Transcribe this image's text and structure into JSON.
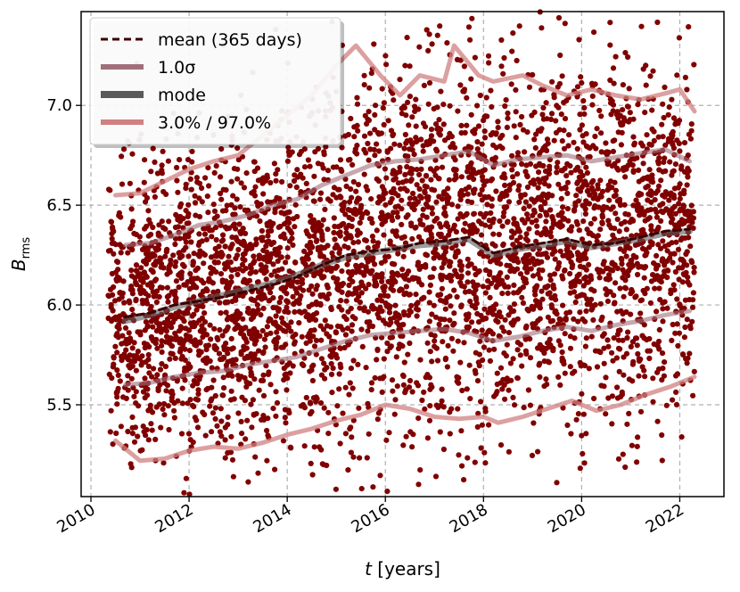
{
  "chart_data": {
    "type": "scatter",
    "xlabel": {
      "var": "t",
      "unit": " [years]"
    },
    "ylabel": {
      "var": "B",
      "sub": "rms"
    },
    "xlim": [
      2009.8,
      2022.9
    ],
    "ylim": [
      5.04,
      7.47
    ],
    "xticks": [
      2010,
      2012,
      2014,
      2016,
      2018,
      2020,
      2022
    ],
    "yticks": [
      5.5,
      6.0,
      6.5,
      7.0
    ],
    "xtick_labels": [
      "2010",
      "2012",
      "2014",
      "2016",
      "2018",
      "2020",
      "2022"
    ],
    "ytick_labels": [
      "5.5",
      "6.0",
      "6.5",
      "7.0"
    ],
    "grid": true,
    "legend_position": "top-left",
    "legend": [
      {
        "label": "mean (365 days)",
        "style": "dashed",
        "color": "#5a0000"
      },
      {
        "label": "1.0σ",
        "style": "thick",
        "color": "#a0707a"
      },
      {
        "label": "mode",
        "style": "thick-dark",
        "color": "#5a5a5a"
      },
      {
        "label": "3.0% / 97.0%",
        "style": "thick-light",
        "color": "#d08080"
      }
    ],
    "scatter": {
      "color": "#800000",
      "description_points": 4300,
      "x_range": [
        2010.35,
        2022.3
      ],
      "envelope": "points spread between the 3% and 97% curves, denser near the mean"
    },
    "series": [
      {
        "name": "mean (365 days)",
        "color": "#5a0000",
        "x": [
          2010.7,
          2011.2,
          2011.7,
          2012.2,
          2012.7,
          2013.2,
          2013.7,
          2014.2,
          2014.7,
          2015.2,
          2015.7,
          2016.2,
          2016.7,
          2017.2,
          2017.7,
          2018.2,
          2018.7,
          2019.2,
          2019.7,
          2020.2,
          2020.7,
          2021.2,
          2021.7,
          2022.2
        ],
        "y": [
          5.94,
          5.96,
          6.0,
          6.02,
          6.04,
          6.07,
          6.1,
          6.14,
          6.2,
          6.25,
          6.27,
          6.28,
          6.31,
          6.32,
          6.34,
          6.26,
          6.29,
          6.31,
          6.33,
          6.3,
          6.31,
          6.34,
          6.37,
          6.38
        ]
      },
      {
        "name": "mode",
        "color": "#5a5a5a",
        "x": [
          2010.7,
          2011.2,
          2011.7,
          2012.2,
          2012.7,
          2013.2,
          2013.7,
          2014.2,
          2014.7,
          2015.2,
          2015.7,
          2016.2,
          2016.7,
          2017.2,
          2017.7,
          2018.2,
          2018.7,
          2019.2,
          2019.7,
          2020.2,
          2020.7,
          2021.2,
          2021.7,
          2022.2
        ],
        "y": [
          5.92,
          5.95,
          5.99,
          6.02,
          6.05,
          6.08,
          6.11,
          6.15,
          6.2,
          6.24,
          6.26,
          6.28,
          6.3,
          6.31,
          6.33,
          6.25,
          6.28,
          6.3,
          6.32,
          6.29,
          6.31,
          6.33,
          6.36,
          6.37
        ]
      },
      {
        "name": "1.0σ upper",
        "color": "#a0707a",
        "x": [
          2010.7,
          2011.2,
          2011.7,
          2012.2,
          2012.7,
          2013.2,
          2013.7,
          2014.2,
          2014.7,
          2015.2,
          2015.7,
          2016.2,
          2016.7,
          2017.2,
          2017.7,
          2018.2,
          2018.7,
          2019.2,
          2019.7,
          2020.2,
          2020.7,
          2021.2,
          2021.7,
          2022.2
        ],
        "y": [
          6.3,
          6.31,
          6.35,
          6.4,
          6.42,
          6.45,
          6.5,
          6.53,
          6.6,
          6.65,
          6.7,
          6.72,
          6.73,
          6.75,
          6.77,
          6.7,
          6.73,
          6.74,
          6.75,
          6.72,
          6.74,
          6.76,
          6.78,
          6.72
        ]
      },
      {
        "name": "1.0σ lower",
        "color": "#a0707a",
        "x": [
          2010.7,
          2011.2,
          2011.7,
          2012.2,
          2012.7,
          2013.2,
          2013.7,
          2014.2,
          2014.7,
          2015.2,
          2015.7,
          2016.2,
          2016.7,
          2017.2,
          2017.7,
          2018.2,
          2018.7,
          2019.2,
          2019.7,
          2020.2,
          2020.7,
          2021.2,
          2021.7,
          2022.2
        ],
        "y": [
          5.6,
          5.61,
          5.64,
          5.66,
          5.67,
          5.7,
          5.72,
          5.74,
          5.78,
          5.82,
          5.85,
          5.86,
          5.87,
          5.88,
          5.86,
          5.82,
          5.84,
          5.87,
          5.89,
          5.87,
          5.9,
          5.92,
          5.95,
          5.97
        ]
      },
      {
        "name": "97.0%",
        "color": "#d08080",
        "x": [
          2010.5,
          2011.0,
          2011.5,
          2012.0,
          2012.5,
          2013.0,
          2013.5,
          2014.0,
          2014.5,
          2015.0,
          2015.4,
          2015.9,
          2016.3,
          2016.7,
          2017.2,
          2017.4,
          2017.9,
          2018.2,
          2018.8,
          2019.2,
          2019.7,
          2020.2,
          2020.7,
          2021.2,
          2021.7,
          2022.0,
          2022.3
        ],
        "y": [
          6.55,
          6.56,
          6.62,
          6.68,
          6.72,
          6.75,
          6.85,
          6.95,
          7.05,
          7.2,
          7.3,
          7.15,
          7.05,
          7.15,
          7.12,
          7.3,
          7.15,
          7.12,
          7.15,
          7.1,
          7.05,
          7.08,
          7.05,
          7.03,
          7.06,
          7.08,
          6.97
        ]
      },
      {
        "name": "3.0%",
        "color": "#d08080",
        "x": [
          2010.5,
          2011.0,
          2011.5,
          2012.0,
          2012.5,
          2013.0,
          2013.5,
          2014.0,
          2014.5,
          2015.0,
          2015.5,
          2016.0,
          2016.5,
          2017.0,
          2017.5,
          2018.0,
          2018.3,
          2018.8,
          2019.3,
          2019.8,
          2020.3,
          2020.8,
          2021.3,
          2021.8,
          2022.3
        ],
        "y": [
          5.32,
          5.22,
          5.23,
          5.27,
          5.29,
          5.28,
          5.31,
          5.35,
          5.38,
          5.42,
          5.45,
          5.5,
          5.48,
          5.44,
          5.43,
          5.44,
          5.41,
          5.44,
          5.48,
          5.52,
          5.47,
          5.5,
          5.55,
          5.59,
          5.64
        ]
      }
    ]
  }
}
